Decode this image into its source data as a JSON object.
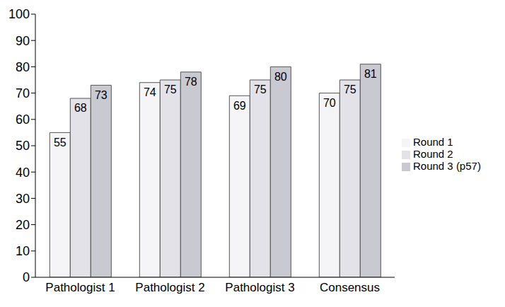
{
  "chart_data": {
    "type": "bar",
    "categories": [
      "Pathologist 1",
      "Pathologist 2",
      "Pathologist 3",
      "Consensus"
    ],
    "series": [
      {
        "name": "Round 1",
        "color": "#f5f5f8",
        "values": [
          55,
          74,
          69,
          70
        ]
      },
      {
        "name": "Round 2",
        "color": "#e2e2e8",
        "values": [
          68,
          75,
          75,
          75
        ]
      },
      {
        "name": "Round 3 (p57)",
        "color": "#c9c9d1",
        "values": [
          73,
          78,
          80,
          81
        ]
      }
    ],
    "ylim": [
      0,
      100
    ],
    "yticks": [
      0,
      10,
      20,
      30,
      40,
      50,
      60,
      70,
      80,
      90,
      100
    ],
    "grid": false,
    "legend": "right",
    "data_labels": true
  }
}
